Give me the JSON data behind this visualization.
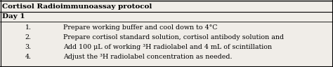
{
  "title": "Cortisol Radioimmunoassay protocol",
  "section": "Day 1",
  "numbers": [
    "1.",
    "2.",
    "3.",
    "4."
  ],
  "items": [
    "Prepare working buffer and cool down to 4°C",
    "Prepare cortisol standard solution, cortisol antibody solution and",
    "Add 100 μL of working ³H radiolabel and 4 mL of scintillation",
    "Adjust the ³H radiolabel concentration as needed."
  ],
  "bg_color": "#f0ede8",
  "title_fontsize": 7.5,
  "section_fontsize": 7.5,
  "item_fontsize": 6.8,
  "num_fontsize": 6.8
}
